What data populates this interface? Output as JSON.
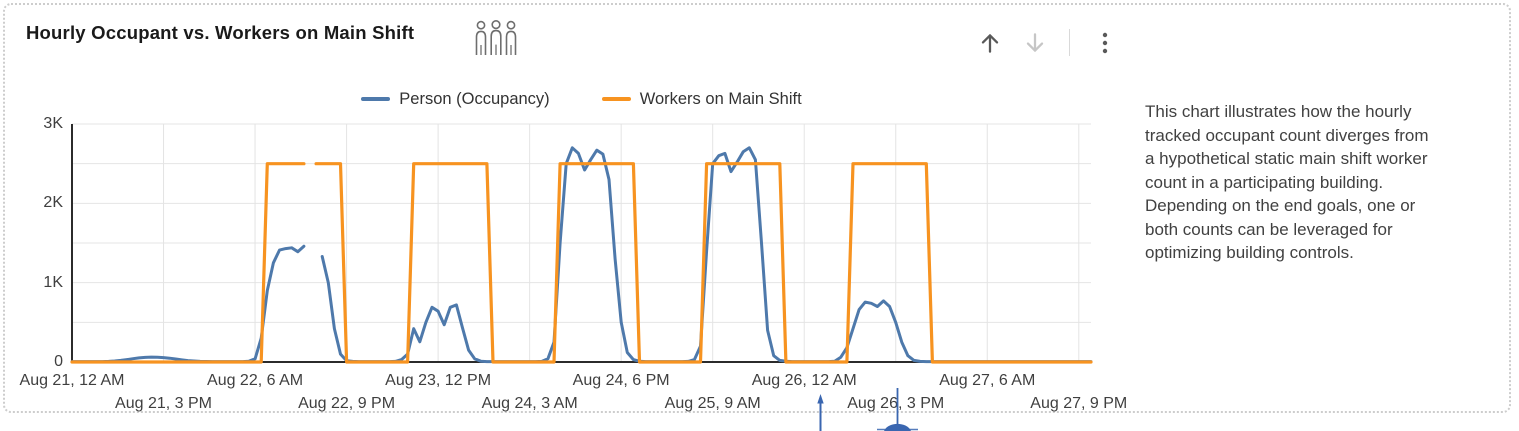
{
  "card": {
    "title": "Hourly Occupant vs. Workers on Main Shift"
  },
  "toolbar": {
    "icons": [
      {
        "name": "arrow-up",
        "enabled": true
      },
      {
        "name": "arrow-down",
        "enabled": false
      },
      {
        "name": "kebab-menu",
        "enabled": true
      }
    ]
  },
  "description": "This chart illustrates how the hourly\ntracked occupant count diverges from\na hypothetical static main shift worker\ncount in a participating building.\nDepending on the end goals, one or\nboth counts can be leveraged for\noptimizing building controls.",
  "colors": {
    "occupancy_blue": "#4e79ab",
    "workers_orange": "#f79320",
    "axis": "#2b2b2b",
    "grid": "#e4e4e4",
    "tick_text": "#3f3f3f",
    "annotation_blue": "#3a66b0"
  },
  "chart_data": {
    "type": "line",
    "title": "Hourly Occupant vs. Workers on Main Shift",
    "x_unit": "hours since Aug 21, 12 AM (hourly samples)",
    "x_range_hours": [
      0,
      167
    ],
    "ylim": [
      0,
      3000
    ],
    "grid": true,
    "legend_position": "top",
    "y_ticks": [
      {
        "value": 0,
        "label": "0"
      },
      {
        "value": 1000,
        "label": "1K"
      },
      {
        "value": 2000,
        "label": "2K"
      },
      {
        "value": 3000,
        "label": "3K"
      }
    ],
    "y_minor_grid_step": 500,
    "x_ticks": [
      {
        "hour": 0,
        "label": "Aug 21, 12 AM",
        "row": 1
      },
      {
        "hour": 15,
        "label": "Aug 21, 3 PM",
        "row": 2
      },
      {
        "hour": 30,
        "label": "Aug 22, 6 AM",
        "row": 1
      },
      {
        "hour": 45,
        "label": "Aug 22, 9 PM",
        "row": 2
      },
      {
        "hour": 60,
        "label": "Aug 23, 12 PM",
        "row": 1
      },
      {
        "hour": 75,
        "label": "Aug 24, 3 AM",
        "row": 2
      },
      {
        "hour": 90,
        "label": "Aug 24, 6 PM",
        "row": 1
      },
      {
        "hour": 105,
        "label": "Aug 25, 9 AM",
        "row": 2
      },
      {
        "hour": 120,
        "label": "Aug 26, 12 AM",
        "row": 1
      },
      {
        "hour": 135,
        "label": "Aug 26, 3 PM",
        "row": 2
      },
      {
        "hour": 150,
        "label": "Aug 27, 6 AM",
        "row": 1
      },
      {
        "hour": 165,
        "label": "Aug 27, 9 PM",
        "row": 2
      }
    ],
    "notes": "null values are a short missing-data gap on Aug 22 around 3-4 PM; workers series is a static 2500-person main shift, 8 AM to 8 PM, Aug 22 through Aug 26",
    "series": [
      {
        "name": "Person (Occupancy)",
        "color": "#4e79ab",
        "values": [
          5,
          5,
          5,
          5,
          5,
          5,
          8,
          12,
          20,
          30,
          42,
          52,
          58,
          62,
          60,
          55,
          48,
          38,
          28,
          18,
          12,
          8,
          6,
          5,
          5,
          5,
          5,
          5,
          5,
          10,
          40,
          300,
          900,
          1250,
          1410,
          1430,
          1440,
          1390,
          1460,
          null,
          null,
          1330,
          1000,
          420,
          100,
          15,
          8,
          5,
          5,
          5,
          5,
          5,
          5,
          8,
          30,
          100,
          420,
          255,
          500,
          690,
          640,
          470,
          690,
          720,
          430,
          150,
          40,
          10,
          5,
          5,
          5,
          5,
          5,
          5,
          5,
          5,
          5,
          8,
          40,
          250,
          1500,
          2500,
          2700,
          2630,
          2420,
          2550,
          2670,
          2620,
          2300,
          1300,
          500,
          120,
          30,
          10,
          5,
          5,
          5,
          5,
          5,
          5,
          5,
          8,
          30,
          200,
          1400,
          2500,
          2600,
          2630,
          2400,
          2520,
          2650,
          2700,
          2550,
          1500,
          400,
          80,
          20,
          10,
          5,
          5,
          5,
          5,
          5,
          5,
          5,
          10,
          60,
          180,
          420,
          660,
          755,
          740,
          700,
          770,
          700,
          500,
          250,
          80,
          20,
          8,
          5,
          5,
          5,
          5,
          5,
          5,
          5,
          5,
          5,
          5,
          5,
          5,
          5,
          5,
          5,
          5,
          5,
          5,
          5,
          5,
          5,
          5,
          5,
          5,
          5,
          5,
          5,
          5
        ]
      },
      {
        "name": "Workers on Main Shift",
        "color": "#f79320",
        "values": [
          0,
          0,
          0,
          0,
          0,
          0,
          0,
          0,
          0,
          0,
          0,
          0,
          0,
          0,
          0,
          0,
          0,
          0,
          0,
          0,
          0,
          0,
          0,
          0,
          0,
          0,
          0,
          0,
          0,
          0,
          0,
          0,
          2500,
          2500,
          2500,
          2500,
          2500,
          2500,
          2500,
          null,
          2500,
          2500,
          2500,
          2500,
          2500,
          0,
          0,
          0,
          0,
          0,
          0,
          0,
          0,
          0,
          0,
          0,
          2500,
          2500,
          2500,
          2500,
          2500,
          2500,
          2500,
          2500,
          2500,
          2500,
          2500,
          2500,
          2500,
          0,
          0,
          0,
          0,
          0,
          0,
          0,
          0,
          0,
          0,
          0,
          2500,
          2500,
          2500,
          2500,
          2500,
          2500,
          2500,
          2500,
          2500,
          2500,
          2500,
          2500,
          2500,
          0,
          0,
          0,
          0,
          0,
          0,
          0,
          0,
          0,
          0,
          0,
          2500,
          2500,
          2500,
          2500,
          2500,
          2500,
          2500,
          2500,
          2500,
          2500,
          2500,
          2500,
          2500,
          0,
          0,
          0,
          0,
          0,
          0,
          0,
          0,
          0,
          0,
          0,
          2500,
          2500,
          2500,
          2500,
          2500,
          2500,
          2500,
          2500,
          2500,
          2500,
          2500,
          2500,
          2500,
          0,
          0,
          0,
          0,
          0,
          0,
          0,
          0,
          0,
          0,
          0,
          0,
          0,
          0,
          0,
          0,
          0,
          0,
          0,
          0,
          0,
          0,
          0,
          0,
          0,
          0,
          0
        ]
      }
    ]
  }
}
